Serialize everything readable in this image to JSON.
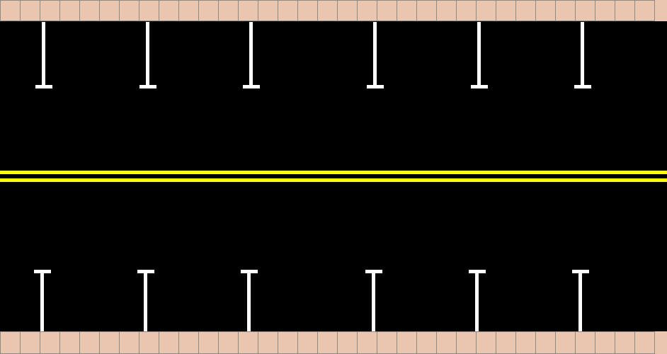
{
  "scene": {
    "type": "top-down street with parallel parking bays",
    "colors": {
      "asphalt": "#000000",
      "sidewalk": "#e9c6ad",
      "sidewalk_grout": "#8a8a8a",
      "center_line": "#ffff00",
      "parking_marks": "#ffffff"
    },
    "center_line": "double-yellow",
    "parking_rows": {
      "top": {
        "side": "north-curb",
        "bay_markers": 6
      },
      "bottom": {
        "side": "south-curb",
        "bay_markers": 6
      }
    }
  }
}
